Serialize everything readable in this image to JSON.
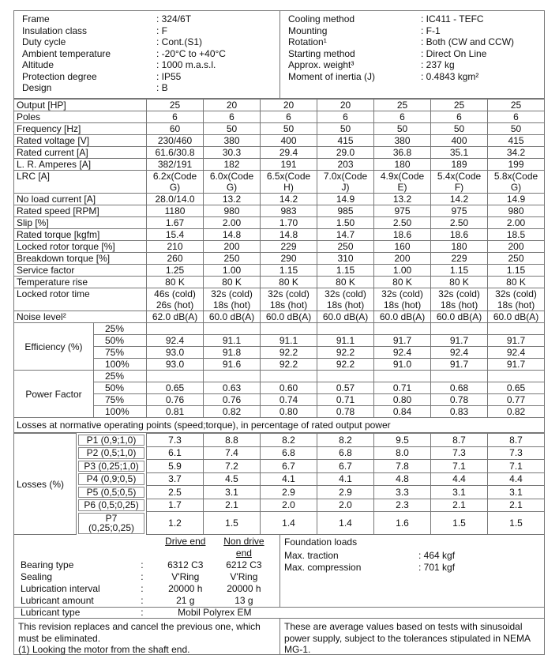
{
  "info": {
    "left": [
      [
        "Frame",
        ": 324/6T"
      ],
      [
        "Insulation class",
        ": F"
      ],
      [
        "Duty cycle",
        ": Cont.(S1)"
      ],
      [
        "Ambient temperature",
        ": -20°C to +40°C"
      ],
      [
        "Altitude",
        ": 1000 m.a.s.l."
      ],
      [
        "Protection degree",
        ": IP55"
      ],
      [
        "Design",
        ": B"
      ]
    ],
    "right": [
      [
        "Cooling method",
        ": IC411 - TEFC"
      ],
      [
        "Mounting",
        ": F-1"
      ],
      [
        "Rotation¹",
        ": Both (CW and CCW)"
      ],
      [
        "Starting method",
        ": Direct On Line"
      ],
      [
        "Approx. weight³",
        ": 237 kg"
      ],
      [
        "Moment of inertia (J)",
        ": 0.4843 kgm²"
      ]
    ]
  },
  "main": [
    {
      "label": "Output [HP]",
      "values": [
        "25",
        "20",
        "20",
        "20",
        "25",
        "25",
        "25"
      ]
    },
    {
      "label": "Poles",
      "values": [
        "6",
        "6",
        "6",
        "6",
        "6",
        "6",
        "6"
      ]
    },
    {
      "label": "Frequency [Hz]",
      "values": [
        "60",
        "50",
        "50",
        "50",
        "50",
        "50",
        "50"
      ]
    },
    {
      "label": "Rated voltage [V]",
      "values": [
        "230/460",
        "380",
        "400",
        "415",
        "380",
        "400",
        "415"
      ]
    },
    {
      "label": "Rated current [A]",
      "values": [
        "61.6/30.8",
        "30.3",
        "29.4",
        "29.0",
        "36.8",
        "35.1",
        "34.2"
      ]
    },
    {
      "label": "L. R. Amperes [A]",
      "values": [
        "382/191",
        "182",
        "191",
        "203",
        "180",
        "189",
        "199"
      ]
    },
    {
      "label": "LRC [A]",
      "values": [
        "6.2x(Code G)",
        "6.0x(Code G)",
        "6.5x(Code H)",
        "7.0x(Code J)",
        "4.9x(Code E)",
        "5.4x(Code F)",
        "5.8x(Code G)"
      ]
    },
    {
      "label": "No load current [A]",
      "values": [
        "28.0/14.0",
        "13.2",
        "14.2",
        "14.9",
        "13.2",
        "14.2",
        "14.9"
      ]
    },
    {
      "label": "Rated speed [RPM]",
      "values": [
        "1180",
        "980",
        "983",
        "985",
        "975",
        "975",
        "980"
      ]
    },
    {
      "label": "Slip [%]",
      "values": [
        "1.67",
        "2.00",
        "1.70",
        "1.50",
        "2.50",
        "2.50",
        "2.00"
      ]
    },
    {
      "label": "Rated torque [kgfm]",
      "values": [
        "15.4",
        "14.8",
        "14.8",
        "14.7",
        "18.6",
        "18.6",
        "18.5"
      ]
    },
    {
      "label": "Locked rotor torque [%]",
      "values": [
        "210",
        "200",
        "229",
        "250",
        "160",
        "180",
        "200"
      ]
    },
    {
      "label": "Breakdown torque [%]",
      "values": [
        "260",
        "250",
        "290",
        "310",
        "200",
        "229",
        "250"
      ]
    },
    {
      "label": "Service factor",
      "values": [
        "1.25",
        "1.00",
        "1.15",
        "1.15",
        "1.00",
        "1.15",
        "1.15"
      ]
    },
    {
      "label": "Temperature rise",
      "values": [
        "80 K",
        "80 K",
        "80 K",
        "80 K",
        "80 K",
        "80 K",
        "80 K"
      ]
    },
    {
      "label": "Locked rotor time",
      "values": [
        "46s (cold) 26s (hot)",
        "32s (cold) 18s (hot)",
        "32s (cold) 18s (hot)",
        "32s (cold) 18s (hot)",
        "32s (cold) 18s (hot)",
        "32s (cold) 18s (hot)",
        "32s (cold) 18s (hot)"
      ]
    },
    {
      "label": "Noise level²",
      "values": [
        "62.0 dB(A)",
        "60.0 dB(A)",
        "60.0 dB(A)",
        "60.0 dB(A)",
        "60.0 dB(A)",
        "60.0 dB(A)",
        "60.0 dB(A)"
      ]
    }
  ],
  "load_groups": [
    {
      "label": "Efficiency (%)",
      "rows": [
        {
          "load": "25%",
          "values": [
            "",
            "",
            "",
            "",
            "",
            "",
            ""
          ]
        },
        {
          "load": "50%",
          "values": [
            "92.4",
            "91.1",
            "91.1",
            "91.1",
            "91.7",
            "91.7",
            "91.7"
          ]
        },
        {
          "load": "75%",
          "values": [
            "93.0",
            "91.8",
            "92.2",
            "92.2",
            "92.4",
            "92.4",
            "92.4"
          ]
        },
        {
          "load": "100%",
          "values": [
            "93.0",
            "91.6",
            "92.2",
            "92.2",
            "91.0",
            "91.7",
            "91.7"
          ]
        }
      ]
    },
    {
      "label": "Power Factor",
      "rows": [
        {
          "load": "25%",
          "values": [
            "",
            "",
            "",
            "",
            "",
            "",
            ""
          ]
        },
        {
          "load": "50%",
          "values": [
            "0.65",
            "0.63",
            "0.60",
            "0.57",
            "0.71",
            "0.68",
            "0.65"
          ]
        },
        {
          "load": "75%",
          "values": [
            "0.76",
            "0.76",
            "0.74",
            "0.71",
            "0.80",
            "0.78",
            "0.77"
          ]
        },
        {
          "load": "100%",
          "values": [
            "0.81",
            "0.82",
            "0.80",
            "0.78",
            "0.84",
            "0.83",
            "0.82"
          ]
        }
      ]
    }
  ],
  "losses": {
    "header": "Losses at normative operating points (speed;torque), in percentage of rated output power",
    "label": "Losses (%)",
    "rows": [
      {
        "point": "P1 (0,9;1,0)",
        "values": [
          "7.3",
          "8.8",
          "8.2",
          "8.2",
          "9.5",
          "8.7",
          "8.7"
        ]
      },
      {
        "point": "P2 (0,5;1,0)",
        "values": [
          "6.1",
          "7.4",
          "6.8",
          "6.8",
          "8.0",
          "7.3",
          "7.3"
        ]
      },
      {
        "point": "P3 (0,25;1,0)",
        "values": [
          "5.9",
          "7.2",
          "6.7",
          "6.7",
          "7.8",
          "7.1",
          "7.1"
        ]
      },
      {
        "point": "P4 (0,9;0,5)",
        "values": [
          "3.7",
          "4.5",
          "4.1",
          "4.1",
          "4.8",
          "4.4",
          "4.4"
        ]
      },
      {
        "point": "P5 (0,5;0,5)",
        "values": [
          "2.5",
          "3.1",
          "2.9",
          "2.9",
          "3.3",
          "3.1",
          "3.1"
        ]
      },
      {
        "point": "P6 (0,5;0,25)",
        "values": [
          "1.7",
          "2.1",
          "2.0",
          "2.0",
          "2.3",
          "2.1",
          "2.1"
        ]
      },
      {
        "point": "P7 (0,25;0,25)",
        "values": [
          "1.2",
          "1.5",
          "1.4",
          "1.4",
          "1.6",
          "1.5",
          "1.5"
        ]
      }
    ]
  },
  "bearing": {
    "drive_end": "Drive end",
    "non_drive_end": "Non drive end",
    "rows": [
      {
        "label": "Bearing type",
        "de": "6312 C3",
        "nde": "6212 C3"
      },
      {
        "label": "Sealing",
        "de": "V'Ring",
        "nde": "V'Ring"
      },
      {
        "label": "Lubrication interval",
        "de": "20000 h",
        "nde": "20000 h"
      },
      {
        "label": "Lubricant amount",
        "de": "21 g",
        "nde": "13 g"
      }
    ],
    "lubricant_type_label": "Lubricant type",
    "lubricant_type": "Mobil Polyrex EM"
  },
  "foundation": {
    "title": "Foundation loads",
    "rows": [
      [
        "Max. traction",
        ": 464 kgf"
      ],
      [
        "Max. compression",
        ": 701 kgf"
      ]
    ]
  },
  "footer": {
    "left": "This revision replaces and cancel the previous one, which must be eliminated.",
    "left_note": "(1) Looking the motor from the shaft end.",
    "right": "These are average values based on tests with sinusoidal power supply, subject to the tolerances stipulated in NEMA MG-1."
  }
}
